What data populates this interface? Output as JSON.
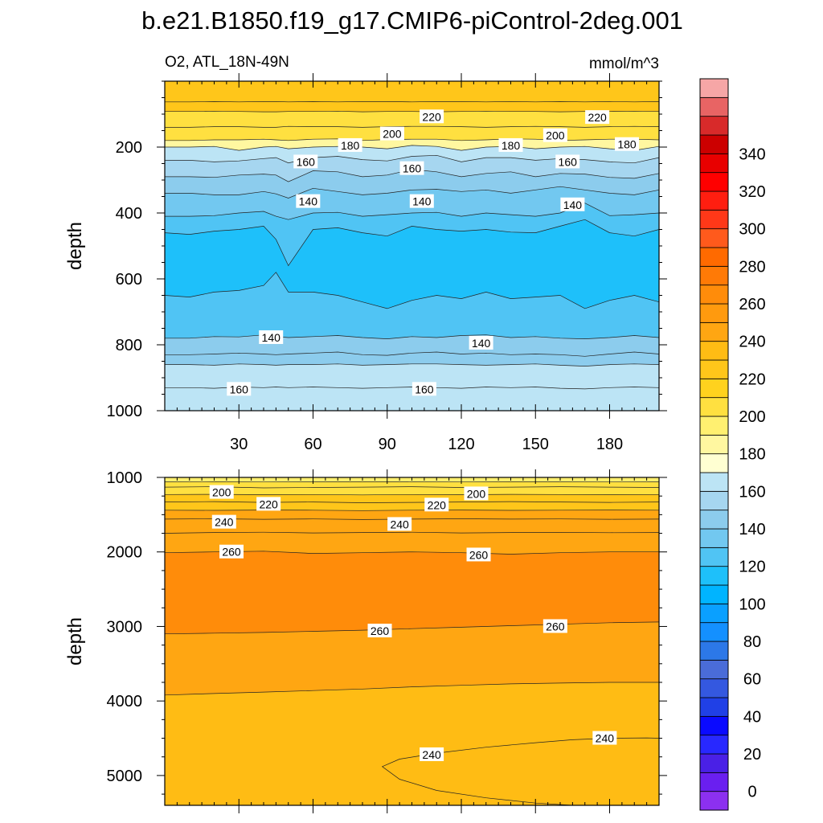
{
  "title": "b.e21.B1850.f19_g17.CMIP6-piControl-2deg.001",
  "left_string": "O2, ATL_18N-49N",
  "right_string": "mmol/m^3",
  "chart_data": [
    {
      "type": "contour",
      "name": "upper",
      "xlim": [
        0,
        200
      ],
      "ylim": [
        1000,
        0
      ],
      "y_reversed": true,
      "xlabel": "",
      "ylabel": "depth",
      "xticks": [
        30,
        60,
        90,
        120,
        150,
        180
      ],
      "yticks": [
        200,
        400,
        600,
        800,
        1000
      ],
      "x": [
        0,
        10,
        20,
        30,
        40,
        45,
        50,
        60,
        70,
        80,
        90,
        100,
        110,
        120,
        130,
        140,
        150,
        160,
        170,
        180,
        190,
        200
      ],
      "contours": [
        {
          "level": 220,
          "y": [
            63,
            63,
            62,
            63,
            62,
            62,
            63,
            62,
            63,
            62,
            62,
            63,
            62,
            62,
            63,
            62,
            63,
            62,
            63,
            62,
            63,
            62
          ]
        },
        {
          "level": 220,
          "y": [
            92,
            92,
            91,
            92,
            93,
            93,
            92,
            92,
            91,
            93,
            92,
            92,
            93,
            92,
            91,
            92,
            92,
            93,
            92,
            92,
            91,
            92
          ]
        },
        {
          "level": 200,
          "y": [
            140,
            140,
            138,
            138,
            140,
            140,
            137,
            138,
            138,
            140,
            138,
            137,
            137,
            138,
            140,
            138,
            137,
            138,
            140,
            138,
            137,
            138
          ]
        },
        {
          "level": 200,
          "y": [
            180,
            180,
            178,
            178,
            176,
            178,
            180,
            176,
            175,
            180,
            177,
            176,
            176,
            180,
            178,
            175,
            176,
            180,
            178,
            176,
            176,
            178
          ]
        },
        {
          "level": 180,
          "y": [
            200,
            200,
            198,
            210,
            200,
            198,
            205,
            200,
            198,
            200,
            205,
            195,
            198,
            210,
            200,
            198,
            205,
            200,
            198,
            205,
            210,
            198
          ]
        },
        {
          "level": 160,
          "y": [
            240,
            240,
            245,
            242,
            235,
            232,
            248,
            232,
            228,
            238,
            242,
            228,
            225,
            245,
            232,
            232,
            240,
            235,
            238,
            245,
            248,
            232
          ]
        },
        {
          "level": 160,
          "y": [
            290,
            290,
            292,
            285,
            282,
            285,
            305,
            272,
            275,
            290,
            285,
            268,
            275,
            290,
            280,
            275,
            290,
            280,
            282,
            292,
            295,
            280
          ]
        },
        {
          "level": 140,
          "y": [
            340,
            340,
            345,
            345,
            335,
            342,
            355,
            325,
            335,
            345,
            340,
            330,
            328,
            335,
            330,
            340,
            330,
            320,
            330,
            340,
            345,
            330
          ]
        },
        {
          "level": 140,
          "y": [
            410,
            410,
            408,
            400,
            395,
            410,
            420,
            400,
            398,
            410,
            405,
            400,
            398,
            410,
            400,
            405,
            410,
            400,
            370,
            408,
            405,
            400
          ]
        },
        {
          "level": 120,
          "y": [
            460,
            465,
            455,
            450,
            440,
            480,
            560,
            450,
            445,
            460,
            470,
            440,
            450,
            455,
            450,
            458,
            460,
            440,
            420,
            460,
            470,
            450
          ]
        },
        {
          "level": 120,
          "y": [
            650,
            655,
            640,
            635,
            620,
            580,
            640,
            640,
            650,
            670,
            690,
            665,
            650,
            660,
            640,
            660,
            655,
            650,
            690,
            665,
            650,
            670
          ]
        },
        {
          "level": 140,
          "y": [
            780,
            780,
            775,
            776,
            770,
            775,
            778,
            775,
            772,
            778,
            782,
            775,
            778,
            772,
            770,
            778,
            775,
            780,
            782,
            778,
            772,
            778
          ]
        },
        {
          "level": 140,
          "y": [
            830,
            830,
            828,
            825,
            828,
            830,
            828,
            825,
            822,
            830,
            832,
            825,
            822,
            828,
            825,
            830,
            828,
            830,
            835,
            828,
            822,
            828
          ]
        },
        {
          "level": 160,
          "y": [
            860,
            860,
            862,
            858,
            860,
            862,
            860,
            860,
            858,
            862,
            860,
            858,
            858,
            860,
            862,
            860,
            858,
            862,
            865,
            860,
            858,
            860
          ]
        },
        {
          "level": 160,
          "y": [
            930,
            930,
            932,
            928,
            930,
            928,
            930,
            928,
            930,
            932,
            930,
            928,
            930,
            932,
            928,
            930,
            928,
            932,
            934,
            930,
            928,
            930
          ]
        }
      ],
      "line_labels": [
        {
          "text": "220",
          "x": 108,
          "y": 108
        },
        {
          "text": "220",
          "x": 175,
          "y": 110
        },
        {
          "text": "200",
          "x": 92,
          "y": 160
        },
        {
          "text": "200",
          "x": 158,
          "y": 165
        },
        {
          "text": "180",
          "x": 75,
          "y": 195
        },
        {
          "text": "180",
          "x": 140,
          "y": 195
        },
        {
          "text": "180",
          "x": 187,
          "y": 192
        },
        {
          "text": "160",
          "x": 57,
          "y": 245
        },
        {
          "text": "160",
          "x": 100,
          "y": 265
        },
        {
          "text": "160",
          "x": 163,
          "y": 245
        },
        {
          "text": "140",
          "x": 58,
          "y": 365
        },
        {
          "text": "140",
          "x": 104,
          "y": 365
        },
        {
          "text": "140",
          "x": 165,
          "y": 375
        },
        {
          "text": "140",
          "x": 43,
          "y": 778
        },
        {
          "text": "140",
          "x": 128,
          "y": 795
        },
        {
          "text": "160",
          "x": 30,
          "y": 935
        },
        {
          "text": "160",
          "x": 105,
          "y": 935
        }
      ]
    },
    {
      "type": "contour",
      "name": "lower",
      "xlim": [
        0,
        200
      ],
      "ylim": [
        5400,
        1000
      ],
      "y_reversed": true,
      "xlabel": "",
      "ylabel": "depth",
      "xticks": [
        30,
        60,
        90,
        120,
        150,
        180
      ],
      "yticks": [
        1000,
        2000,
        3000,
        4000,
        5000
      ],
      "x": [
        0,
        20,
        40,
        60,
        80,
        100,
        120,
        140,
        160,
        180,
        200
      ],
      "contours": [
        {
          "level": 200,
          "y": [
            1060,
            1058,
            1062,
            1060,
            1058,
            1060,
            1062,
            1058,
            1060,
            1062,
            1060
          ]
        },
        {
          "level": 200,
          "y": [
            1130,
            1125,
            1140,
            1135,
            1130,
            1125,
            1135,
            1130,
            1125,
            1130,
            1135
          ]
        },
        {
          "level": 220,
          "y": [
            1230,
            1228,
            1232,
            1230,
            1235,
            1230,
            1232,
            1228,
            1230,
            1232,
            1230
          ]
        },
        {
          "level": 220,
          "y": [
            1330,
            1325,
            1335,
            1330,
            1340,
            1335,
            1330,
            1325,
            1330,
            1335,
            1330
          ]
        },
        {
          "level": 240,
          "y": [
            1440,
            1442,
            1438,
            1440,
            1445,
            1440,
            1438,
            1442,
            1440,
            1438,
            1440
          ]
        },
        {
          "level": 240,
          "y": [
            1560,
            1555,
            1562,
            1558,
            1565,
            1560,
            1555,
            1560,
            1558,
            1562,
            1560
          ]
        },
        {
          "level": 240,
          "y": [
            1750,
            1740,
            1735,
            1745,
            1740,
            1735,
            1745,
            1740,
            1738,
            1742,
            1740
          ]
        },
        {
          "level": 260,
          "y": [
            2010,
            2000,
            1990,
            2020,
            2010,
            2000,
            2010,
            2030,
            2010,
            2000,
            2000
          ]
        },
        {
          "level": 260,
          "y": [
            3100,
            3090,
            3080,
            3065,
            3050,
            3030,
            3010,
            2990,
            2970,
            2950,
            2940
          ]
        },
        {
          "level": 240,
          "y": [
            3920,
            3900,
            3880,
            3860,
            3840,
            3810,
            3790,
            3770,
            3760,
            3750,
            3750
          ]
        }
      ],
      "pockets": [
        {
          "level": 240,
          "x": [
            88,
            95,
            110,
            130,
            150,
            165,
            180,
            195,
            200
          ],
          "y_top": [
            4880,
            4780,
            4700,
            4620,
            4560,
            4520,
            4500,
            4495,
            4500
          ],
          "y_bottom": [
            4880,
            5050,
            5200,
            5300,
            5370,
            5400,
            5400,
            5400,
            5400
          ]
        }
      ],
      "line_labels": [
        {
          "text": "200",
          "x": 23,
          "y": 1200
        },
        {
          "text": "220",
          "x": 42,
          "y": 1360
        },
        {
          "text": "240",
          "x": 24,
          "y": 1600
        },
        {
          "text": "200",
          "x": 126,
          "y": 1220
        },
        {
          "text": "220",
          "x": 110,
          "y": 1370
        },
        {
          "text": "240",
          "x": 95,
          "y": 1630
        },
        {
          "text": "260",
          "x": 27,
          "y": 2000
        },
        {
          "text": "260",
          "x": 127,
          "y": 2040
        },
        {
          "text": "260",
          "x": 87,
          "y": 3060
        },
        {
          "text": "260",
          "x": 158,
          "y": 3000
        },
        {
          "text": "240",
          "x": 108,
          "y": 4720
        },
        {
          "text": "240",
          "x": 178,
          "y": 4500
        }
      ]
    }
  ],
  "colorbar": {
    "tick_labels": [
      "0",
      "20",
      "40",
      "60",
      "80",
      "100",
      "120",
      "140",
      "160",
      "180",
      "200",
      "220",
      "240",
      "260",
      "280",
      "300",
      "320",
      "340"
    ],
    "colors": [
      "#8c30f0",
      "#6a1ff0",
      "#4a20e6",
      "#2828ff",
      "#0a0aff",
      "#2040e6",
      "#3458e0",
      "#4a6cd8",
      "#2c78e8",
      "#1490ff",
      "#0aa0ff",
      "#00b4ff",
      "#1ec0fa",
      "#50c4f4",
      "#72c8f0",
      "#8ccced",
      "#a6d6f0",
      "#bce4f5",
      "#ffffd2",
      "#fff7a0",
      "#fff070",
      "#ffe040",
      "#ffd21e",
      "#ffc61a",
      "#ffbc14",
      "#ffa612",
      "#ff9a0e",
      "#ff8c0a",
      "#ff7a06",
      "#ff6a00",
      "#ff5a1c",
      "#ff3818",
      "#ff1e10",
      "#ff0000",
      "#e80000",
      "#cc0000",
      "#d82a2a",
      "#e86464",
      "#f6a6a6"
    ]
  }
}
